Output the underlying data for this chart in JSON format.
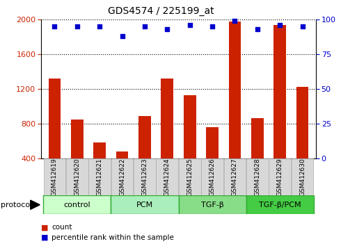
{
  "title": "GDS4574 / 225199_at",
  "samples": [
    "GSM412619",
    "GSM412620",
    "GSM412621",
    "GSM412622",
    "GSM412623",
    "GSM412624",
    "GSM412625",
    "GSM412626",
    "GSM412627",
    "GSM412628",
    "GSM412629",
    "GSM412630"
  ],
  "counts": [
    1320,
    850,
    590,
    480,
    890,
    1320,
    1130,
    760,
    1980,
    870,
    1940,
    1230
  ],
  "percentile_ranks": [
    95,
    95,
    95,
    88,
    95,
    93,
    96,
    95,
    99,
    93,
    96,
    95
  ],
  "groups": [
    {
      "label": "control",
      "start": 0,
      "end": 3,
      "color": "#ccffcc"
    },
    {
      "label": "PCM",
      "start": 3,
      "end": 6,
      "color": "#aaeebb"
    },
    {
      "label": "TGF-β",
      "start": 6,
      "end": 9,
      "color": "#88dd88"
    },
    {
      "label": "TGF-β/PCM",
      "start": 9,
      "end": 12,
      "color": "#44cc44"
    }
  ],
  "ylim_left": [
    400,
    2000
  ],
  "ylim_right": [
    0,
    100
  ],
  "yticks_left": [
    400,
    800,
    1200,
    1600,
    2000
  ],
  "yticks_right": [
    0,
    25,
    50,
    75,
    100
  ],
  "bar_color": "#cc2200",
  "dot_color": "#0000cc",
  "bar_width": 0.55,
  "grid_color": "#000000",
  "background_color": "#ffffff",
  "legend_count_label": "count",
  "legend_pct_label": "percentile rank within the sample",
  "protocol_label": "protocol"
}
